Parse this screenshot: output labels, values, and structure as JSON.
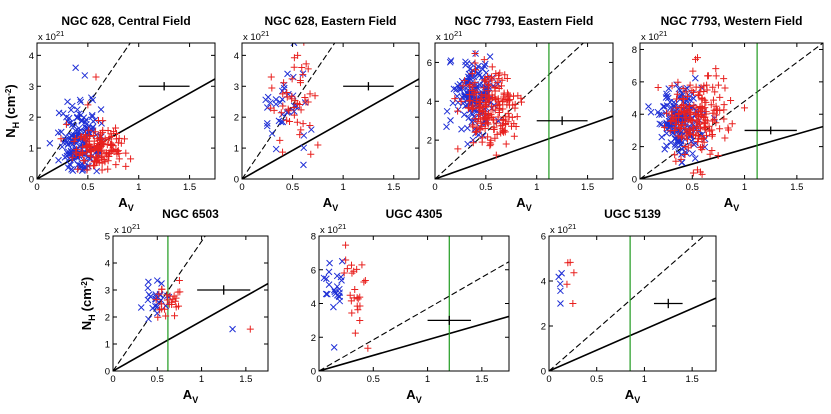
{
  "figure": {
    "xlabel": "A",
    "xlabel_sub": "V",
    "ylabel_main": "N",
    "ylabel_sub": "H",
    "ylabel_unit": "(cm",
    "ylabel_unit_sup": "-2",
    "ylabel_unit_close": ")",
    "scale_prefix": "x 10",
    "scale_exp": "21"
  },
  "colors": {
    "blue_series": "#1f2fd6",
    "red_series": "#e8201e",
    "green_line": "#1f9a1f",
    "axis": "#000000"
  },
  "chart_data": [
    {
      "id": "p1",
      "type": "scatter",
      "title": "NGC 628, Central Field",
      "xlim": [
        0,
        1.75
      ],
      "ylim": [
        0,
        4.4
      ],
      "xticks": [
        "0",
        "0.5",
        "1",
        "1.5"
      ],
      "xtick_values": [
        0,
        0.5,
        1,
        1.5
      ],
      "yticks": [
        "0",
        "1",
        "2",
        "3",
        "4"
      ],
      "ytick_values": [
        0,
        1,
        2,
        3,
        4
      ],
      "show_ylabel": true,
      "green_line_x": null,
      "fit_slope": 1.85,
      "dash_slope": 4.8,
      "errorbar": {
        "x": 1.25,
        "y": 3.0,
        "xerr": 0.25,
        "yerr": 0.07
      },
      "series": [
        {
          "name": "blue",
          "marker": "x",
          "cx": 0.42,
          "cy": 1.2,
          "sx": 0.1,
          "sy": 0.55,
          "n": 160,
          "extra": [
            [
              0.38,
              3.6
            ],
            [
              0.47,
              3.35
            ],
            [
              0.3,
              2.5
            ]
          ]
        },
        {
          "name": "red",
          "marker": "+",
          "cx": 0.6,
          "cy": 1.05,
          "sx": 0.12,
          "sy": 0.35,
          "n": 140,
          "extra": [
            [
              0.58,
              3.3
            ],
            [
              0.92,
              0.65
            ],
            [
              0.86,
              1.3
            ],
            [
              0.5,
              2.4
            ]
          ]
        }
      ]
    },
    {
      "id": "p2",
      "type": "scatter",
      "title": "NGC 628, Eastern Field",
      "xlim": [
        0,
        1.75
      ],
      "ylim": [
        0,
        4.4
      ],
      "xticks": [
        "0",
        "0.5",
        "1",
        "1.5"
      ],
      "xtick_values": [
        0,
        0.5,
        1,
        1.5
      ],
      "yticks": [
        "0",
        "1",
        "2",
        "3",
        "4"
      ],
      "ytick_values": [
        0,
        1,
        2,
        3,
        4
      ],
      "show_ylabel": false,
      "green_line_x": null,
      "fit_slope": 1.85,
      "dash_slope": 4.8,
      "errorbar": {
        "x": 1.25,
        "y": 3.0,
        "xerr": 0.25,
        "yerr": 0.07
      },
      "series": [
        {
          "name": "blue",
          "marker": "x",
          "cx": 0.4,
          "cy": 2.3,
          "sx": 0.12,
          "sy": 0.6,
          "n": 35,
          "extra": [
            [
              0.45,
              3.4
            ],
            [
              0.25,
              1.8
            ]
          ]
        },
        {
          "name": "red",
          "marker": "+",
          "cx": 0.55,
          "cy": 2.6,
          "sx": 0.15,
          "sy": 0.7,
          "n": 45,
          "extra": [
            [
              0.55,
              4.0
            ],
            [
              0.75,
              1.1
            ],
            [
              0.68,
              0.8
            ]
          ]
        }
      ]
    },
    {
      "id": "p3",
      "type": "scatter",
      "title": "NGC 7793, Eastern Field",
      "xlim": [
        0,
        1.75
      ],
      "ylim": [
        0,
        7.0
      ],
      "xticks": [
        "0",
        "0.5",
        "1",
        "1.5"
      ],
      "xtick_values": [
        0,
        0.5,
        1,
        1.5
      ],
      "yticks": [
        "2",
        "4",
        "6"
      ],
      "ytick_values": [
        2,
        4,
        6
      ],
      "show_ylabel": false,
      "green_line_x": 1.12,
      "fit_slope": 1.85,
      "dash_slope": 4.8,
      "errorbar": {
        "x": 1.25,
        "y": 3.0,
        "xerr": 0.25,
        "yerr": 0.12
      },
      "series": [
        {
          "name": "blue",
          "marker": "x",
          "cx": 0.38,
          "cy": 4.2,
          "sx": 0.1,
          "sy": 0.9,
          "n": 170,
          "extra": []
        },
        {
          "name": "red",
          "marker": "+",
          "cx": 0.55,
          "cy": 3.8,
          "sx": 0.14,
          "sy": 0.95,
          "n": 190,
          "extra": [
            [
              0.7,
              1.8
            ],
            [
              0.78,
              2.2
            ]
          ]
        }
      ]
    },
    {
      "id": "p4",
      "type": "scatter",
      "title": "NGC 7793, Western Field",
      "xlim": [
        0,
        1.75
      ],
      "ylim": [
        0,
        8.4
      ],
      "xticks": [
        "0",
        "0.5",
        "1",
        "1.5"
      ],
      "xtick_values": [
        0,
        0.5,
        1,
        1.5
      ],
      "yticks": [
        "0",
        "2",
        "4",
        "6",
        "8"
      ],
      "ytick_values": [
        0,
        2,
        4,
        6,
        8
      ],
      "show_ylabel": false,
      "green_line_x": 1.12,
      "fit_slope": 1.85,
      "dash_slope": 4.8,
      "errorbar": {
        "x": 1.25,
        "y": 3.0,
        "xerr": 0.25,
        "yerr": 0.12
      },
      "series": [
        {
          "name": "blue",
          "marker": "x",
          "cx": 0.38,
          "cy": 3.6,
          "sx": 0.1,
          "sy": 1.1,
          "n": 170,
          "extra": []
        },
        {
          "name": "red",
          "marker": "+",
          "cx": 0.55,
          "cy": 3.9,
          "sx": 0.14,
          "sy": 1.2,
          "n": 190,
          "extra": [
            [
              0.75,
              5.8
            ],
            [
              0.8,
              6.2
            ],
            [
              0.55,
              7.5
            ]
          ]
        }
      ]
    },
    {
      "id": "p5",
      "type": "scatter",
      "title": "NGC 6503",
      "xlim": [
        0,
        1.75
      ],
      "ylim": [
        0,
        5.0
      ],
      "xticks": [
        "0",
        "0.5",
        "1",
        "1.5"
      ],
      "xtick_values": [
        0,
        0.5,
        1,
        1.5
      ],
      "yticks": [
        "0",
        "1",
        "2",
        "3",
        "4",
        "5"
      ],
      "ytick_values": [
        0,
        1,
        2,
        3,
        4,
        5
      ],
      "show_ylabel": true,
      "green_line_x": 0.62,
      "fit_slope": 1.85,
      "dash_slope": 4.8,
      "errorbar": {
        "x": 1.25,
        "y": 3.0,
        "xerr": 0.3,
        "yerr": 0.1
      },
      "series": [
        {
          "name": "blue",
          "marker": "x",
          "cx": 0.48,
          "cy": 2.6,
          "sx": 0.08,
          "sy": 0.25,
          "n": 22,
          "extra": [
            [
              1.35,
              1.55
            ],
            [
              0.5,
              3.35
            ],
            [
              0.4,
              3.3
            ]
          ]
        },
        {
          "name": "red",
          "marker": "+",
          "cx": 0.62,
          "cy": 2.6,
          "sx": 0.1,
          "sy": 0.35,
          "n": 25,
          "extra": [
            [
              1.55,
              1.55
            ],
            [
              0.75,
              3.35
            ]
          ]
        }
      ]
    },
    {
      "id": "p6",
      "type": "scatter",
      "title": "UGC 4305",
      "xlim": [
        0,
        1.75
      ],
      "ylim": [
        0,
        8.0
      ],
      "xticks": [
        "0",
        "0.5",
        "1",
        "1.5"
      ],
      "xtick_values": [
        0,
        0.5,
        1,
        1.5
      ],
      "yticks": [
        "0",
        "2",
        "4",
        "6",
        "8"
      ],
      "ytick_values": [
        0,
        2,
        4,
        6,
        8
      ],
      "show_ylabel": false,
      "green_line_x": 1.2,
      "fit_slope": 1.85,
      "dash_slope": 3.7,
      "errorbar": {
        "x": 1.2,
        "y": 3.0,
        "xerr": 0.2,
        "yerr": 0.15
      },
      "series": [
        {
          "name": "blue",
          "marker": "x",
          "cx": 0.14,
          "cy": 4.8,
          "sx": 0.05,
          "sy": 1.0,
          "n": 22,
          "extra": [
            [
              0.14,
              1.4
            ]
          ]
        },
        {
          "name": "red",
          "marker": "+",
          "cx": 0.3,
          "cy": 5.0,
          "sx": 0.06,
          "sy": 1.1,
          "n": 24,
          "extra": [
            [
              0.45,
              1.35
            ]
          ]
        }
      ]
    },
    {
      "id": "p7",
      "type": "scatter",
      "title": "UGC 5139",
      "xlim": [
        0,
        1.75
      ],
      "ylim": [
        0,
        6.0
      ],
      "xticks": [
        "0",
        "0.5",
        "1",
        "1.5"
      ],
      "xtick_values": [
        0,
        0.5,
        1,
        1.5
      ],
      "yticks": [
        "0",
        "2",
        "4",
        "6"
      ],
      "ytick_values": [
        0,
        2,
        4,
        6
      ],
      "show_ylabel": false,
      "green_line_x": 0.85,
      "fit_slope": 1.85,
      "dash_slope": 3.7,
      "errorbar": {
        "x": 1.25,
        "y": 3.0,
        "xerr": 0.15,
        "yerr": 0.12
      },
      "series": [
        {
          "name": "blue",
          "marker": "x",
          "cx": 0.12,
          "cy": 3.9,
          "sx": 0.03,
          "sy": 0.3,
          "n": 4,
          "extra": [
            [
              0.12,
              3.0
            ]
          ]
        },
        {
          "name": "red",
          "marker": "+",
          "cx": 0.2,
          "cy": 4.0,
          "sx": 0.04,
          "sy": 0.35,
          "n": 4,
          "extra": [
            [
              0.25,
              3.0
            ]
          ]
        }
      ]
    }
  ]
}
